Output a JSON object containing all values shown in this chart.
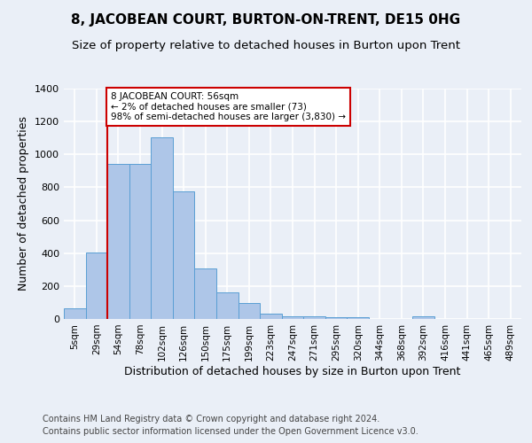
{
  "title": "8, JACOBEAN COURT, BURTON-ON-TRENT, DE15 0HG",
  "subtitle": "Size of property relative to detached houses in Burton upon Trent",
  "xlabel": "Distribution of detached houses by size in Burton upon Trent",
  "ylabel": "Number of detached properties",
  "categories": [
    "5sqm",
    "29sqm",
    "54sqm",
    "78sqm",
    "102sqm",
    "126sqm",
    "150sqm",
    "175sqm",
    "199sqm",
    "223sqm",
    "247sqm",
    "271sqm",
    "295sqm",
    "320sqm",
    "344sqm",
    "368sqm",
    "392sqm",
    "416sqm",
    "441sqm",
    "465sqm",
    "489sqm"
  ],
  "bar_values": [
    65,
    405,
    945,
    945,
    1105,
    775,
    305,
    160,
    98,
    35,
    18,
    18,
    10,
    10,
    0,
    0,
    18,
    0,
    0,
    0,
    0
  ],
  "bar_color": "#aec6e8",
  "bar_edge_color": "#5a9fd4",
  "annotation_box_text": "8 JACOBEAN COURT: 56sqm\n← 2% of detached houses are smaller (73)\n98% of semi-detached houses are larger (3,830) →",
  "vline_x_index": 2,
  "vline_color": "#cc0000",
  "annotation_box_color": "#cc0000",
  "ylim": [
    0,
    1400
  ],
  "yticks": [
    0,
    200,
    400,
    600,
    800,
    1000,
    1200,
    1400
  ],
  "footer_line1": "Contains HM Land Registry data © Crown copyright and database right 2024.",
  "footer_line2": "Contains public sector information licensed under the Open Government Licence v3.0.",
  "bg_color": "#eaeff7",
  "plot_bg_color": "#eaeff7",
  "grid_color": "#ffffff",
  "title_fontsize": 11,
  "subtitle_fontsize": 9.5,
  "axis_label_fontsize": 9,
  "tick_fontsize": 8,
  "footer_fontsize": 7
}
